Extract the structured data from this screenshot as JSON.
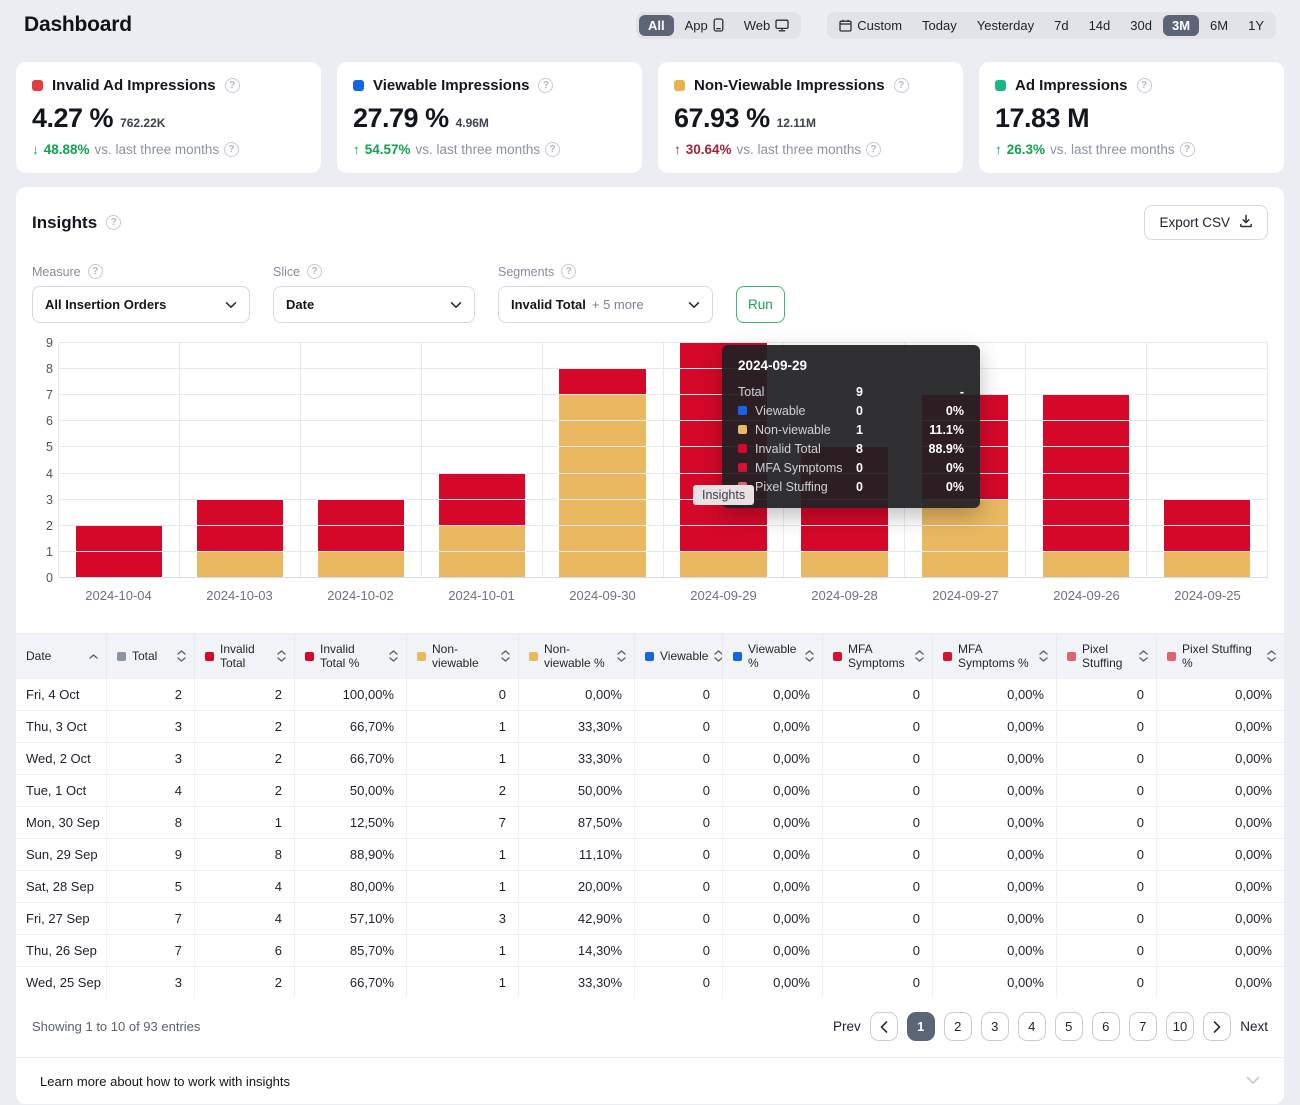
{
  "header": {
    "title": "Dashboard",
    "platform_toggle": [
      {
        "label": "All",
        "icon": null,
        "active": true
      },
      {
        "label": "App",
        "icon": "phone-icon",
        "active": false
      },
      {
        "label": "Web",
        "icon": "monitor-icon",
        "active": false
      }
    ],
    "date_ranges": [
      {
        "label": "Custom",
        "icon": "calendar-icon",
        "active": false
      },
      {
        "label": "Today",
        "icon": null,
        "active": false
      },
      {
        "label": "Yesterday",
        "icon": null,
        "active": false
      },
      {
        "label": "7d",
        "icon": null,
        "active": false
      },
      {
        "label": "14d",
        "icon": null,
        "active": false
      },
      {
        "label": "30d",
        "icon": null,
        "active": false
      },
      {
        "label": "3M",
        "icon": null,
        "active": true
      },
      {
        "label": "6M",
        "icon": null,
        "active": false
      },
      {
        "label": "1Y",
        "icon": null,
        "active": false
      }
    ]
  },
  "kpi_cards": [
    {
      "label": "Invalid Ad Impressions",
      "chip_color": "#e03e44",
      "value": "4.27 %",
      "sub": "762.22K",
      "delta_dir": "down",
      "delta": "48.88%",
      "delta_status": "green",
      "compare": "vs. last three months"
    },
    {
      "label": "Viewable Impressions",
      "chip_color": "#1266e3",
      "value": "27.79 %",
      "sub": "4.96M",
      "delta_dir": "up",
      "delta": "54.57%",
      "delta_status": "green",
      "compare": "vs. last three months"
    },
    {
      "label": "Non-Viewable Impressions",
      "chip_color": "#e8b34b",
      "value": "67.93 %",
      "sub": "12.11M",
      "delta_dir": "up",
      "delta": "30.64%",
      "delta_status": "red",
      "compare": "vs. last three months"
    },
    {
      "label": "Ad Impressions",
      "chip_color": "#17b885",
      "value": "17.83 M",
      "sub": "",
      "delta_dir": "up",
      "delta": "26.3%",
      "delta_status": "green",
      "compare": "vs. last three months"
    }
  ],
  "insights": {
    "title": "Insights",
    "export_label": "Export CSV",
    "controls": {
      "measure": {
        "label": "Measure",
        "value": "All Insertion Orders"
      },
      "slice": {
        "label": "Slice",
        "value": "Date"
      },
      "segments": {
        "label": "Segments",
        "value": "Invalid Total",
        "extra": "+ 5 more"
      },
      "run_label": "Run"
    }
  },
  "chart_data": {
    "type": "bar",
    "stacked": true,
    "categories": [
      "2024-10-04",
      "2024-10-03",
      "2024-10-02",
      "2024-10-01",
      "2024-09-30",
      "2024-09-29",
      "2024-09-28",
      "2024-09-27",
      "2024-09-26",
      "2024-09-25"
    ],
    "series": [
      {
        "name": "Non-viewable",
        "color": "#e9b861",
        "values": [
          0,
          1,
          1,
          2,
          7,
          1,
          1,
          3,
          1,
          1
        ]
      },
      {
        "name": "Invalid Total",
        "color": "#d50829",
        "values": [
          2,
          2,
          2,
          2,
          1,
          8,
          4,
          4,
          6,
          2
        ]
      }
    ],
    "ylim": [
      0,
      9
    ],
    "yticks": [
      0,
      1,
      2,
      3,
      4,
      5,
      6,
      7,
      8,
      9
    ],
    "grid": true,
    "legend_position": "none"
  },
  "tooltip": {
    "title": "2024-09-29",
    "rows": [
      {
        "label": "Total",
        "color": null,
        "value": "9",
        "pct": "-"
      },
      {
        "label": "Viewable",
        "color": "#1266e3",
        "value": "0",
        "pct": "0%"
      },
      {
        "label": "Non-viewable",
        "color": "#e9b861",
        "value": "1",
        "pct": "11.1%"
      },
      {
        "label": "Invalid Total",
        "color": "#d50829",
        "value": "8",
        "pct": "88.9%"
      },
      {
        "label": "MFA Symptoms",
        "color": "#d8102e",
        "value": "0",
        "pct": "0%"
      },
      {
        "label": "Pixel Stuffing",
        "color": "#dd6470",
        "value": "0",
        "pct": "0%"
      }
    ],
    "cursor_label": "Insights"
  },
  "table": {
    "columns": [
      {
        "label": "Date",
        "color": null,
        "sort": "asc"
      },
      {
        "label": "Total",
        "color": "#8b93a5",
        "sort": "both"
      },
      {
        "label": "Invalid Total",
        "color": "#d50829",
        "sort": "both"
      },
      {
        "label": "Invalid Total %",
        "color": "#d50829",
        "sort": "both"
      },
      {
        "label": "Non-viewable",
        "color": "#e9b861",
        "sort": "both"
      },
      {
        "label": "Non-viewable %",
        "color": "#e9b861",
        "sort": "both"
      },
      {
        "label": "Viewable",
        "color": "#1266e3",
        "sort": "both"
      },
      {
        "label": "Viewable %",
        "color": "#1266e3",
        "sort": "both"
      },
      {
        "label": "MFA Symptoms",
        "color": "#d8102e",
        "sort": "both"
      },
      {
        "label": "MFA Symptoms %",
        "color": "#d8102e",
        "sort": "both"
      },
      {
        "label": "Pixel Stuffing",
        "color": "#dd6470",
        "sort": "both"
      },
      {
        "label": "Pixel Stuffing %",
        "color": "#dd6470",
        "sort": "both"
      }
    ],
    "rows": [
      [
        "Fri, 4 Oct",
        "2",
        "2",
        "100,00%",
        "0",
        "0,00%",
        "0",
        "0,00%",
        "0",
        "0,00%",
        "0",
        "0,00%"
      ],
      [
        "Thu, 3 Oct",
        "3",
        "2",
        "66,70%",
        "1",
        "33,30%",
        "0",
        "0,00%",
        "0",
        "0,00%",
        "0",
        "0,00%"
      ],
      [
        "Wed, 2 Oct",
        "3",
        "2",
        "66,70%",
        "1",
        "33,30%",
        "0",
        "0,00%",
        "0",
        "0,00%",
        "0",
        "0,00%"
      ],
      [
        "Tue, 1 Oct",
        "4",
        "2",
        "50,00%",
        "2",
        "50,00%",
        "0",
        "0,00%",
        "0",
        "0,00%",
        "0",
        "0,00%"
      ],
      [
        "Mon, 30 Sep",
        "8",
        "1",
        "12,50%",
        "7",
        "87,50%",
        "0",
        "0,00%",
        "0",
        "0,00%",
        "0",
        "0,00%"
      ],
      [
        "Sun, 29 Sep",
        "9",
        "8",
        "88,90%",
        "1",
        "11,10%",
        "0",
        "0,00%",
        "0",
        "0,00%",
        "0",
        "0,00%"
      ],
      [
        "Sat, 28 Sep",
        "5",
        "4",
        "80,00%",
        "1",
        "20,00%",
        "0",
        "0,00%",
        "0",
        "0,00%",
        "0",
        "0,00%"
      ],
      [
        "Fri, 27 Sep",
        "7",
        "4",
        "57,10%",
        "3",
        "42,90%",
        "0",
        "0,00%",
        "0",
        "0,00%",
        "0",
        "0,00%"
      ],
      [
        "Thu, 26 Sep",
        "7",
        "6",
        "85,70%",
        "1",
        "14,30%",
        "0",
        "0,00%",
        "0",
        "0,00%",
        "0",
        "0,00%"
      ],
      [
        "Wed, 25 Sep",
        "3",
        "2",
        "66,70%",
        "1",
        "33,30%",
        "0",
        "0,00%",
        "0",
        "0,00%",
        "0",
        "0,00%"
      ]
    ]
  },
  "pagination": {
    "summary": "Showing 1 to 10 of 93 entries",
    "prev_label": "Prev",
    "next_label": "Next",
    "pages": [
      "1",
      "2",
      "3",
      "4",
      "5",
      "6",
      "7",
      "10"
    ],
    "active_page": "1"
  },
  "footer": {
    "text": "Learn more about how to work with insights"
  }
}
